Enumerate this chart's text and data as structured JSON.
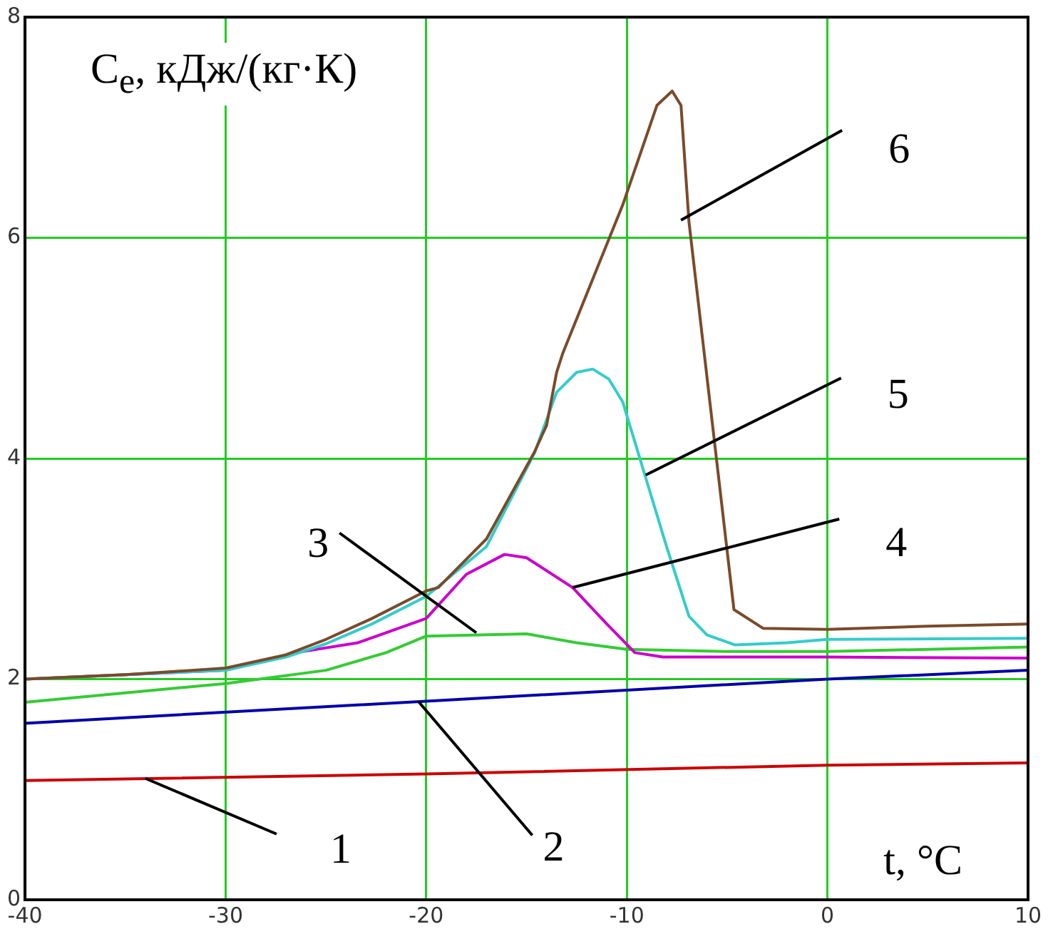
{
  "chart_data": {
    "type": "line",
    "ylabel": "C$_{e}$, кДж/(кг·К)",
    "xlabel": "t, °C",
    "xlim": [
      -40,
      10
    ],
    "xticks": [
      -40,
      -30,
      -20,
      -10,
      0,
      10
    ],
    "ylim": [
      0,
      8
    ],
    "yticks": [
      0,
      2,
      4,
      6,
      8
    ],
    "grid": true,
    "legend": false,
    "series": [
      {
        "color": "#cc0000",
        "x": [
          -40,
          -20,
          0,
          10
        ],
        "values": [
          1.08,
          1.14,
          1.22,
          1.24
        ]
      },
      {
        "color": "#0000aa",
        "x": [
          -40,
          -20,
          0,
          10
        ],
        "values": [
          1.6,
          1.8,
          2.0,
          2.08
        ]
      },
      {
        "color": "#33cc33",
        "x": [
          -40,
          -30,
          -25,
          -22,
          -20,
          -15,
          -12.5,
          -10,
          -5,
          0,
          10
        ],
        "values": [
          1.79,
          1.96,
          2.08,
          2.24,
          2.39,
          2.41,
          2.33,
          2.27,
          2.25,
          2.25,
          2.29
        ]
      },
      {
        "color": "#cc00cc",
        "x": [
          -40,
          -30,
          -26.5,
          -23.4,
          -20,
          -18,
          -16.1,
          -15,
          -12.7,
          -11,
          -9.6,
          -8.2,
          0,
          10
        ],
        "values": [
          2.0,
          2.08,
          2.24,
          2.33,
          2.55,
          2.95,
          3.13,
          3.1,
          2.83,
          2.5,
          2.24,
          2.2,
          2.2,
          2.19
        ]
      },
      {
        "color": "#33cccc",
        "x": [
          -40,
          -30,
          -27,
          -25,
          -22.7,
          -20,
          -17,
          -14.6,
          -13.5,
          -12.5,
          -11.7,
          -10.9,
          -10.2,
          -9.1,
          -8,
          -6.9,
          -6,
          -4.6,
          -2,
          0,
          10
        ],
        "values": [
          2.0,
          2.08,
          2.2,
          2.32,
          2.5,
          2.75,
          3.2,
          4.05,
          4.6,
          4.78,
          4.81,
          4.72,
          4.51,
          3.85,
          3.19,
          2.57,
          2.4,
          2.31,
          2.33,
          2.36,
          2.37
        ]
      },
      {
        "color": "#7a4a2a",
        "x": [
          -40,
          -35,
          -30,
          -27,
          -25,
          -22.7,
          -20,
          -19.4,
          -17,
          -14.6,
          -14,
          -13.5,
          -13.2,
          -10.2,
          -8.5,
          -7.74,
          -7.3,
          -6.9,
          -4.66,
          -3.2,
          0,
          5,
          10
        ],
        "values": [
          2.0,
          2.04,
          2.1,
          2.22,
          2.36,
          2.55,
          2.8,
          2.83,
          3.27,
          4.06,
          4.3,
          4.78,
          4.95,
          6.3,
          7.2,
          7.33,
          7.2,
          6.14,
          2.63,
          2.46,
          2.45,
          2.48,
          2.5
        ]
      }
    ],
    "annotations": [
      {
        "text": "1",
        "x": -34,
        "y": 1.1
      },
      {
        "text": "2",
        "x": -20.4,
        "y": 1.8
      },
      {
        "text": "3",
        "x": -17.5,
        "y": 2.42
      },
      {
        "text": "4",
        "x": -12.7,
        "y": 2.83
      },
      {
        "text": "5",
        "x": -9.06,
        "y": 3.85
      },
      {
        "text": "6",
        "x": -7.3,
        "y": 6.16
      }
    ]
  }
}
